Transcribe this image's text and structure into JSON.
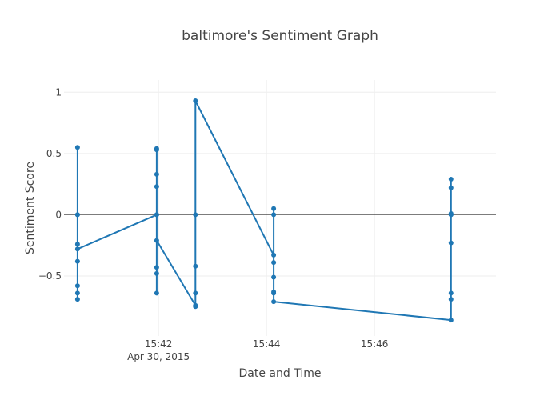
{
  "chart_data": {
    "type": "line",
    "title": "baltimore's Sentiment Graph",
    "xlabel": "Date and Time",
    "ylabel": "Sentiment Score",
    "x_date": "Apr 30, 2015",
    "x_ticks": [
      "15:42",
      "15:44",
      "15:46"
    ],
    "y_ticks": [
      "−0.5",
      "0",
      "0.5",
      "1"
    ],
    "y_tick_values": [
      -0.5,
      0,
      0.5,
      1
    ],
    "xlim": [
      "15:40:15",
      "15:48:15"
    ],
    "ylim": [
      -0.99,
      1.1
    ],
    "grid": true,
    "legend": "none",
    "line_color": "#1f77b4",
    "series": [
      {
        "points": [
          [
            "15:40:30",
            -0.69
          ],
          [
            "15:40:30",
            -0.64
          ],
          [
            "15:40:30",
            -0.58
          ],
          [
            "15:40:30",
            -0.38
          ],
          [
            "15:40:30",
            -0.24
          ],
          [
            "15:40:30",
            0.0
          ],
          [
            "15:40:30",
            0.55
          ],
          [
            "15:40:30",
            0.0
          ],
          [
            "15:40:30",
            -0.28
          ],
          [
            "15:41:58",
            0.0
          ],
          [
            "15:41:58",
            0.54
          ],
          [
            "15:41:58",
            0.53
          ],
          [
            "15:41:58",
            0.33
          ],
          [
            "15:41:58",
            0.23
          ],
          [
            "15:41:58",
            0.0
          ],
          [
            "15:41:58",
            -0.43
          ],
          [
            "15:41:58",
            -0.48
          ],
          [
            "15:41:58",
            -0.64
          ],
          [
            "15:41:58",
            -0.21
          ],
          [
            "15:42:41",
            -0.74
          ],
          [
            "15:42:41",
            -0.75
          ],
          [
            "15:42:41",
            -0.64
          ],
          [
            "15:42:41",
            -0.42
          ],
          [
            "15:42:41",
            0.0
          ],
          [
            "15:42:41",
            0.93
          ],
          [
            "15:44:08",
            -0.33
          ],
          [
            "15:44:08",
            -0.39
          ],
          [
            "15:44:08",
            -0.51
          ],
          [
            "15:44:08",
            -0.63
          ],
          [
            "15:44:08",
            -0.64
          ],
          [
            "15:44:08",
            0.0
          ],
          [
            "15:44:08",
            0.05
          ],
          [
            "15:44:08",
            -0.71
          ],
          [
            "15:47:25",
            -0.86
          ],
          [
            "15:47:25",
            -0.69
          ],
          [
            "15:47:25",
            -0.64
          ],
          [
            "15:47:25",
            -0.23
          ],
          [
            "15:47:25",
            0.0
          ],
          [
            "15:47:25",
            0.01
          ],
          [
            "15:47:25",
            0.22
          ],
          [
            "15:47:25",
            0.29
          ],
          [
            "15:47:25",
            0.0
          ]
        ]
      }
    ]
  }
}
